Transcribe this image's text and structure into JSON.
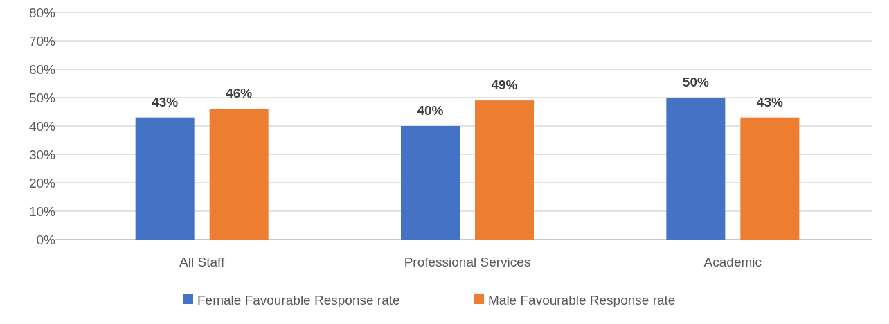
{
  "chart_data": {
    "type": "bar",
    "categories": [
      "All Staff",
      "Professional Services",
      "Academic"
    ],
    "series": [
      {
        "name": "Female Favourable Response rate",
        "color": "#4472c4",
        "values": [
          43,
          40,
          50
        ]
      },
      {
        "name": "Male Favourable Response rate",
        "color": "#ed7d31",
        "values": [
          46,
          49,
          43
        ]
      }
    ],
    "ylim": [
      0,
      80
    ],
    "yticks": [
      {
        "value": 0,
        "label": "0%"
      },
      {
        "value": 10,
        "label": "10%"
      },
      {
        "value": 20,
        "label": "20%"
      },
      {
        "value": 30,
        "label": "30%"
      },
      {
        "value": 40,
        "label": "40%"
      },
      {
        "value": 50,
        "label": "50%"
      },
      {
        "value": 60,
        "label": "60%"
      },
      {
        "value": 70,
        "label": "70%"
      },
      {
        "value": 80,
        "label": "80%"
      }
    ],
    "value_labels": [
      [
        "43%",
        "40%",
        "50%"
      ],
      [
        "46%",
        "49%",
        "43%"
      ]
    ],
    "grid": "y",
    "legend": "bottom"
  }
}
